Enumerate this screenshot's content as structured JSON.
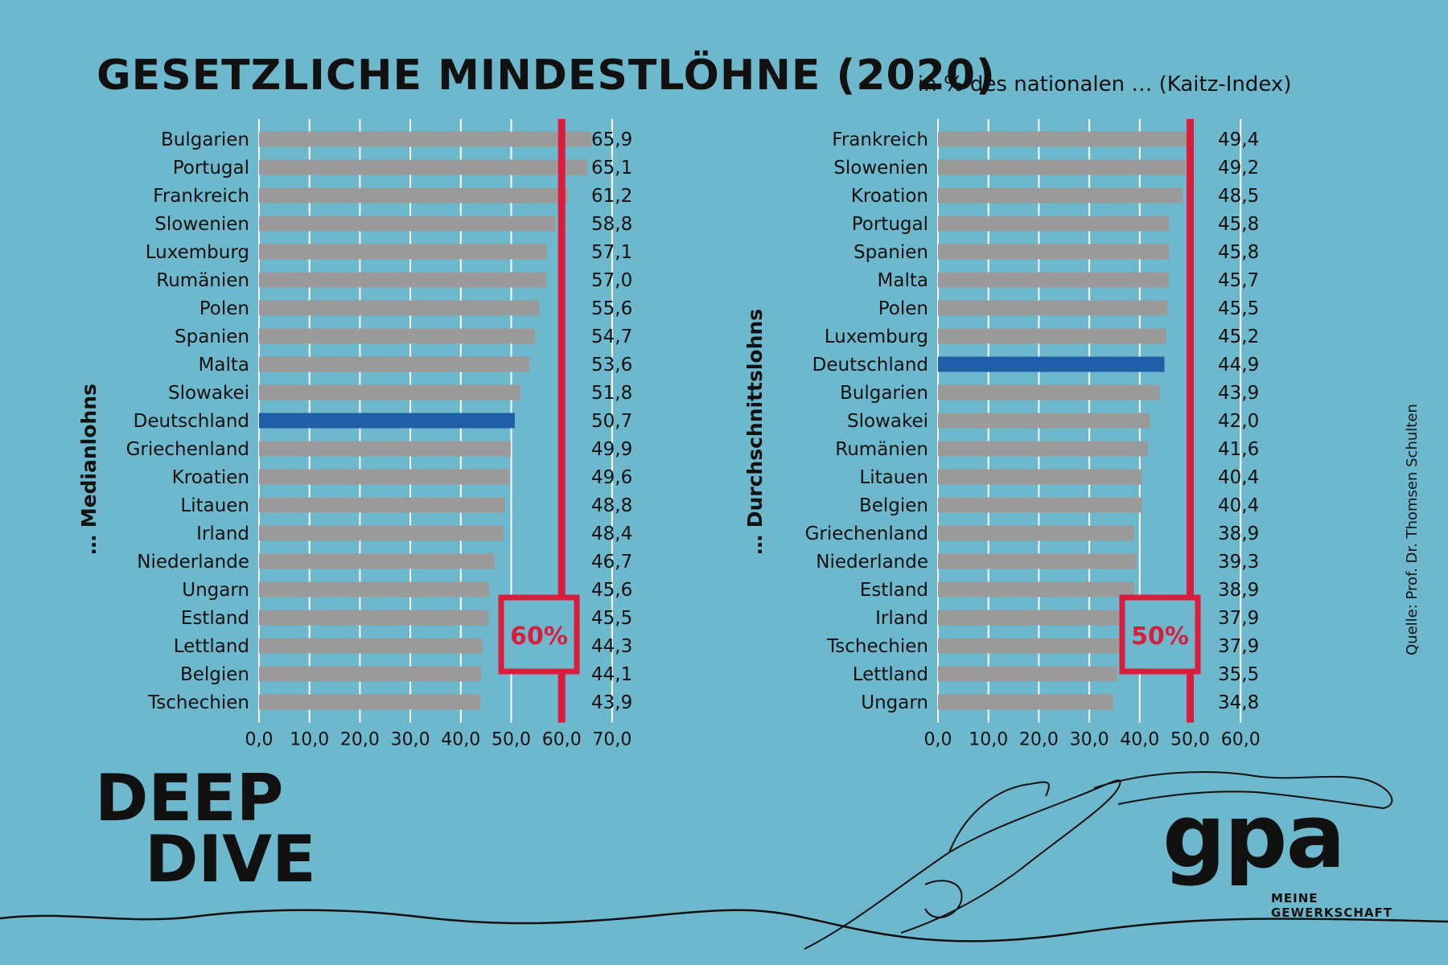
{
  "title": "GESETZLICHE MINDESTLÖHNE (2020)",
  "subtitle": "in % des nationalen … (Kaitz-Index)",
  "source": "Quelle: Prof. Dr. Thomsen Schulten",
  "brand": {
    "deep": "DEEP",
    "dive": "DIVE",
    "logo": "gpa",
    "tagline_1": "MEINE",
    "tagline_2": "GEWERKSCHAFT"
  },
  "colors": {
    "background": "#6db8cc",
    "bar": "#9a9a9a",
    "highlight": "#1f5fa8",
    "threshold": "#d81e3c",
    "text": "#111111"
  },
  "chart_data": [
    {
      "type": "bar",
      "orientation": "horizontal",
      "ylabel": "… Medianlohns",
      "categories": [
        "Bulgarien",
        "Portugal",
        "Frankreich",
        "Slowenien",
        "Luxemburg",
        "Rumänien",
        "Polen",
        "Spanien",
        "Malta",
        "Slowakei",
        "Deutschland",
        "Griechenland",
        "Kroatien",
        "Litauen",
        "Irland",
        "Niederlande",
        "Ungarn",
        "Estland",
        "Lettland",
        "Belgien",
        "Tschechien"
      ],
      "values": [
        65.9,
        65.1,
        61.2,
        58.8,
        57.1,
        57.0,
        55.6,
        54.7,
        53.6,
        51.8,
        50.7,
        49.9,
        49.6,
        48.8,
        48.4,
        46.7,
        45.6,
        45.5,
        44.3,
        44.1,
        43.9
      ],
      "value_labels": [
        "65,9",
        "65,1",
        "61,2",
        "58,8",
        "57,1",
        "57,0",
        "55,6",
        "54,7",
        "53,6",
        "51,8",
        "50,7",
        "49,9",
        "49,6",
        "48,8",
        "48,4",
        "46,7",
        "45,6",
        "45,5",
        "44,3",
        "44,1",
        "43,9"
      ],
      "highlight": "Deutschland",
      "xlim": [
        0,
        70
      ],
      "xticks": [
        "0,0",
        "10,0",
        "20,0",
        "30,0",
        "40,0",
        "50,0",
        "60,0",
        "70,0"
      ],
      "threshold": {
        "value": 60,
        "label": "60%"
      },
      "grid": true
    },
    {
      "type": "bar",
      "orientation": "horizontal",
      "ylabel": "… Durchschnittslohns",
      "categories": [
        "Frankreich",
        "Slowenien",
        "Kroation",
        "Portugal",
        "Spanien",
        "Malta",
        "Polen",
        "Luxemburg",
        "Deutschland",
        "Bulgarien",
        "Slowakei",
        "Rumänien",
        "Litauen",
        "Belgien",
        "Griechenland",
        "Niederlande",
        "Estland",
        "Irland",
        "Tschechien",
        "Lettland",
        "Ungarn"
      ],
      "values": [
        49.4,
        49.2,
        48.5,
        45.8,
        45.8,
        45.7,
        45.5,
        45.2,
        44.9,
        43.9,
        42.0,
        41.6,
        40.4,
        40.4,
        38.9,
        39.3,
        38.9,
        37.9,
        37.9,
        35.5,
        34.8
      ],
      "value_labels": [
        "49,4",
        "49,2",
        "48,5",
        "45,8",
        "45,8",
        "45,7",
        "45,5",
        "45,2",
        "44,9",
        "43,9",
        "42,0",
        "41,6",
        "40,4",
        "40,4",
        "38,9",
        "39,3",
        "38,9",
        "37,9",
        "37,9",
        "35,5",
        "34,8"
      ],
      "highlight": "Deutschland",
      "xlim": [
        0,
        60
      ],
      "xticks": [
        "0,0",
        "10,0",
        "20,0",
        "30,0",
        "40,0",
        "50,0",
        "60,0"
      ],
      "threshold": {
        "value": 50,
        "label": "50%"
      },
      "grid": true
    }
  ]
}
